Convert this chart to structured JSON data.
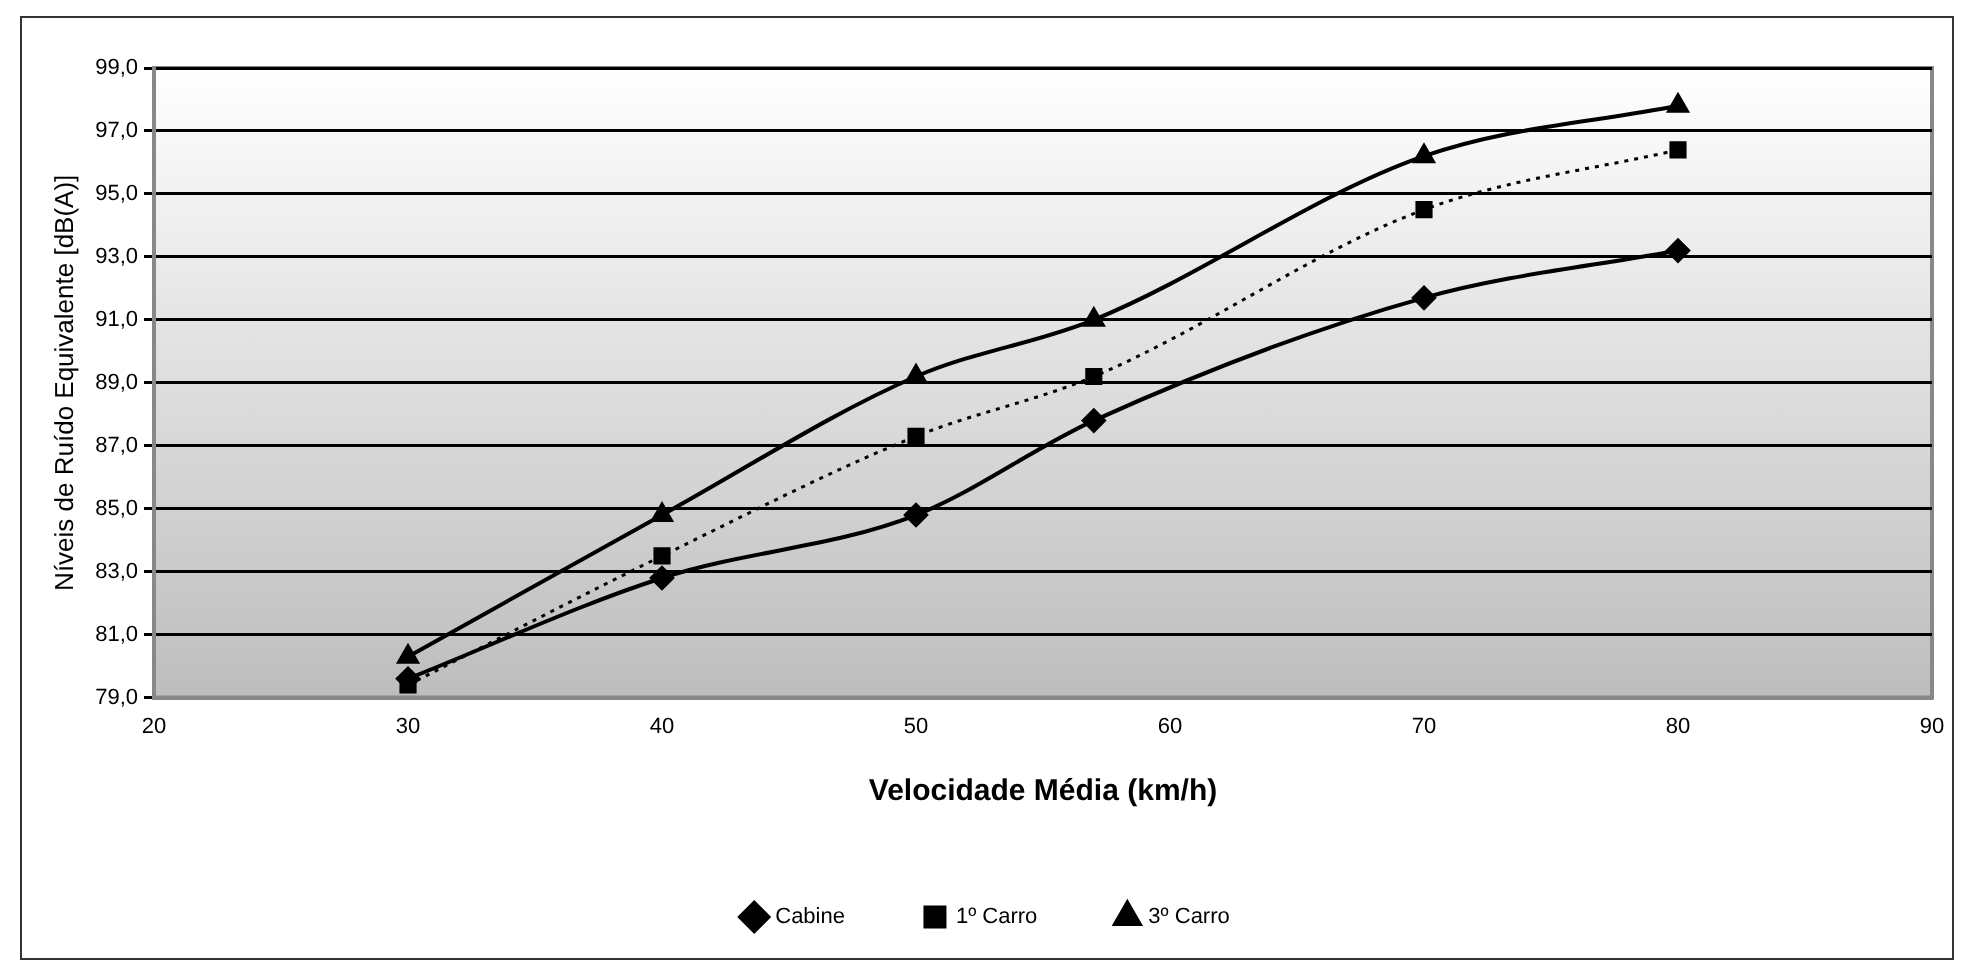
{
  "chart_data": {
    "type": "line",
    "xlabel": "Velocidade Média (km/h)",
    "ylabel": "Níveis de Ruído Equivalente [dB(A)]",
    "x": [
      30,
      40,
      50,
      57,
      70,
      80
    ],
    "series": [
      {
        "name": "Cabine",
        "color": "#000000",
        "values": [
          79.6,
          82.8,
          84.8,
          87.8,
          91.7,
          93.2
        ],
        "marker": "diamond",
        "line_style": "solid"
      },
      {
        "name": "1º Carro",
        "color": "#000000",
        "values": [
          79.4,
          83.5,
          87.3,
          89.2,
          94.5,
          96.4
        ],
        "marker": "square",
        "line_style": "dotted"
      },
      {
        "name": "3º Carro",
        "color": "#000000",
        "values": [
          80.3,
          84.8,
          89.2,
          91.0,
          96.2,
          97.8
        ],
        "marker": "triangle",
        "line_style": "solid"
      }
    ],
    "xlim": [
      20,
      90
    ],
    "xticks": [
      20,
      30,
      40,
      50,
      60,
      70,
      80,
      90
    ],
    "ylim": [
      79,
      99
    ],
    "yticks": [
      {
        "value": 79,
        "label": "79,0"
      },
      {
        "value": 81,
        "label": "81,0"
      },
      {
        "value": 83,
        "label": "83,0"
      },
      {
        "value": 85,
        "label": "85,0"
      },
      {
        "value": 87,
        "label": "87,0"
      },
      {
        "value": 89,
        "label": "89,0"
      },
      {
        "value": 91,
        "label": "91,0"
      },
      {
        "value": 93,
        "label": "93,0"
      },
      {
        "value": 95,
        "label": "95,0"
      },
      {
        "value": 97,
        "label": "97,0"
      },
      {
        "value": 99,
        "label": "99,0"
      }
    ],
    "grid": "y",
    "legend": "bottom"
  }
}
